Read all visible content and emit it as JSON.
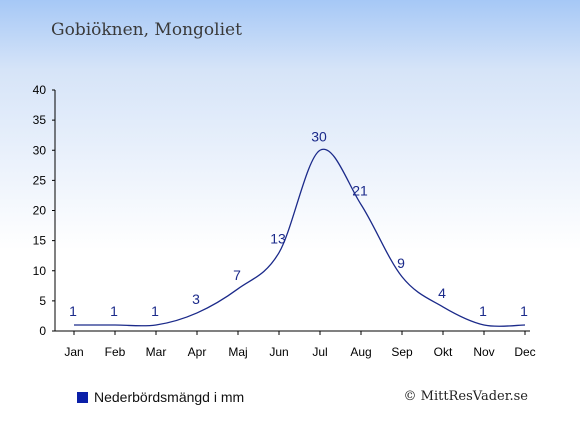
{
  "header": {
    "title": "Gobiöknen, Mongoliet"
  },
  "legend": {
    "label": "Nederbördsmängd i mm",
    "color": "#0a1fa8"
  },
  "credit": "© MittResVader.se",
  "colors": {
    "line": "#1b2a8a",
    "axis": "#000000",
    "background_top": "#a6c8f6"
  },
  "chart_data": {
    "type": "line",
    "title": "Gobiöknen, Mongoliet",
    "xlabel": "",
    "ylabel": "",
    "categories": [
      "Jan",
      "Feb",
      "Mar",
      "Apr",
      "Maj",
      "Jun",
      "Jul",
      "Aug",
      "Sep",
      "Okt",
      "Nov",
      "Dec"
    ],
    "series": [
      {
        "name": "Nederbördsmängd i mm",
        "values": [
          1,
          1,
          1,
          3,
          7,
          13,
          30,
          21,
          9,
          4,
          1,
          1
        ]
      }
    ],
    "ylim": [
      0,
      40
    ],
    "yticks": [
      0,
      5,
      10,
      15,
      20,
      25,
      30,
      35,
      40
    ],
    "grid": false,
    "legend_position": "bottom-left"
  }
}
